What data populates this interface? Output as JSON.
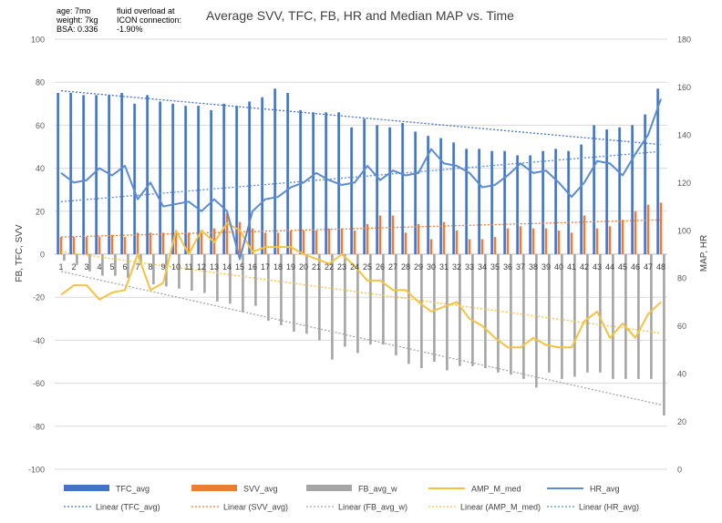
{
  "info_left": [
    "age: 7mo",
    "weight: 7kg",
    "BSA: 0.336"
  ],
  "info_right": [
    "fluid overload at",
    "ICON connection:",
    "-1.90%"
  ],
  "chart_data": {
    "type": "bar",
    "title": "Average SVV, TFC, FB, HR and Median MAP vs. Time",
    "ylabel_left": "FB, TFC, SVV",
    "ylabel_right": "MAP, HR",
    "ylim_left": [
      -100,
      100
    ],
    "ylim_right": [
      0,
      180
    ],
    "yticks_left": [
      -100,
      -80,
      -60,
      -40,
      -20,
      0,
      20,
      40,
      60,
      80,
      100
    ],
    "yticks_right": [
      0,
      20,
      40,
      60,
      80,
      100,
      120,
      140,
      160,
      180
    ],
    "grid": true,
    "legend_position": "bottom",
    "categories": [
      "1",
      "2",
      "3",
      "4",
      "5",
      "6",
      "7",
      "8",
      "9",
      "10",
      "11",
      "12",
      "13",
      "14",
      "15",
      "16",
      "17",
      "18",
      "19",
      "20",
      "21",
      "22",
      "23",
      "24",
      "25",
      "26",
      "27",
      "28",
      "29",
      "30",
      "31",
      "32",
      "33",
      "34",
      "35",
      "36",
      "37",
      "38",
      "39",
      "40",
      "41",
      "42",
      "43",
      "44",
      "45",
      "46",
      "47",
      "48"
    ],
    "series": [
      {
        "name": "TFC_avg",
        "kind": "bar",
        "axis": "left",
        "color": "#4472C4",
        "values": [
          75,
          75,
          74,
          74,
          74,
          75,
          70,
          74,
          71,
          70,
          69,
          69,
          67,
          70,
          69,
          71,
          73,
          77,
          75,
          67,
          66,
          66,
          66,
          59,
          63,
          60,
          59,
          61,
          57,
          55,
          54,
          52,
          49,
          49,
          48,
          48,
          46,
          46,
          48,
          49,
          48,
          51,
          60,
          58,
          59,
          60,
          65,
          77
        ]
      },
      {
        "name": "SVV_avg",
        "kind": "bar",
        "axis": "left",
        "color": "#ED7D31",
        "values": [
          8,
          8,
          8,
          8,
          9,
          8,
          10,
          10,
          10,
          10,
          10,
          10,
          12,
          19,
          15,
          12,
          10,
          10,
          11,
          11,
          11,
          12,
          12,
          11,
          14,
          18,
          18,
          10,
          14,
          7,
          15,
          11,
          7,
          7,
          8,
          12,
          13,
          12,
          12,
          11,
          10,
          18,
          12,
          13,
          16,
          20,
          23,
          24
        ]
      },
      {
        "name": "FB_avg_w",
        "kind": "bar",
        "axis": "left",
        "color": "#A5A5A5",
        "values": [
          -3,
          -5,
          -8,
          -10,
          -10,
          -11,
          -5,
          -14,
          -15,
          -16,
          -17,
          -18,
          -22,
          -23,
          -27,
          -24,
          -31,
          -33,
          -36,
          -37,
          -40,
          -49,
          -43,
          -46,
          -42,
          -42,
          -47,
          -51,
          -53,
          -50,
          -54,
          -52,
          -52,
          -53,
          -55,
          -56,
          -58,
          -62,
          -55,
          -58,
          -57,
          -55,
          -55,
          -58,
          -58,
          -58,
          -58,
          -75
        ]
      },
      {
        "name": "AMP_M_med",
        "kind": "line",
        "axis": "right",
        "color": "#F5C342",
        "values": [
          73,
          77,
          77,
          71,
          74,
          75,
          90,
          75,
          78,
          100,
          90,
          100,
          95,
          103,
          100,
          91,
          93,
          93,
          93,
          90,
          88,
          86,
          90,
          85,
          79,
          79,
          75,
          75,
          70,
          66,
          68,
          70,
          63,
          60,
          55,
          51,
          51,
          55,
          52,
          51,
          51,
          62,
          66,
          55,
          61,
          55,
          65,
          70
        ]
      },
      {
        "name": "HR_avg",
        "kind": "line",
        "axis": "right",
        "color": "#5B8BD0",
        "values": [
          124,
          120,
          121,
          126,
          123,
          127,
          113,
          120,
          110,
          111,
          112,
          108,
          113,
          108,
          88,
          108,
          113,
          114,
          118,
          120,
          124,
          121,
          119,
          120,
          127,
          121,
          125,
          123,
          124,
          134,
          128,
          127,
          124,
          118,
          119,
          123,
          128,
          124,
          125,
          120,
          114,
          120,
          129,
          128,
          123,
          132,
          140,
          155
        ]
      }
    ],
    "trendlines": [
      {
        "name": "Linear (TFC_avg)",
        "axis": "left",
        "color": "#4472C4",
        "start": 76,
        "end": 51
      },
      {
        "name": "Linear (SVV_avg)",
        "axis": "left",
        "color": "#ED7D31",
        "start": 8,
        "end": 16
      },
      {
        "name": "Linear (FB_avg_w)",
        "axis": "left",
        "color": "#A5A5A5",
        "start": -8,
        "end": -70
      },
      {
        "name": "Linear (AMP_M_med)",
        "axis": "right",
        "color": "#F5C342",
        "start": 91,
        "end": 57
      },
      {
        "name": "Linear (HR_avg)",
        "axis": "right",
        "color": "#5B8BD0",
        "start": 112,
        "end": 133
      }
    ]
  }
}
